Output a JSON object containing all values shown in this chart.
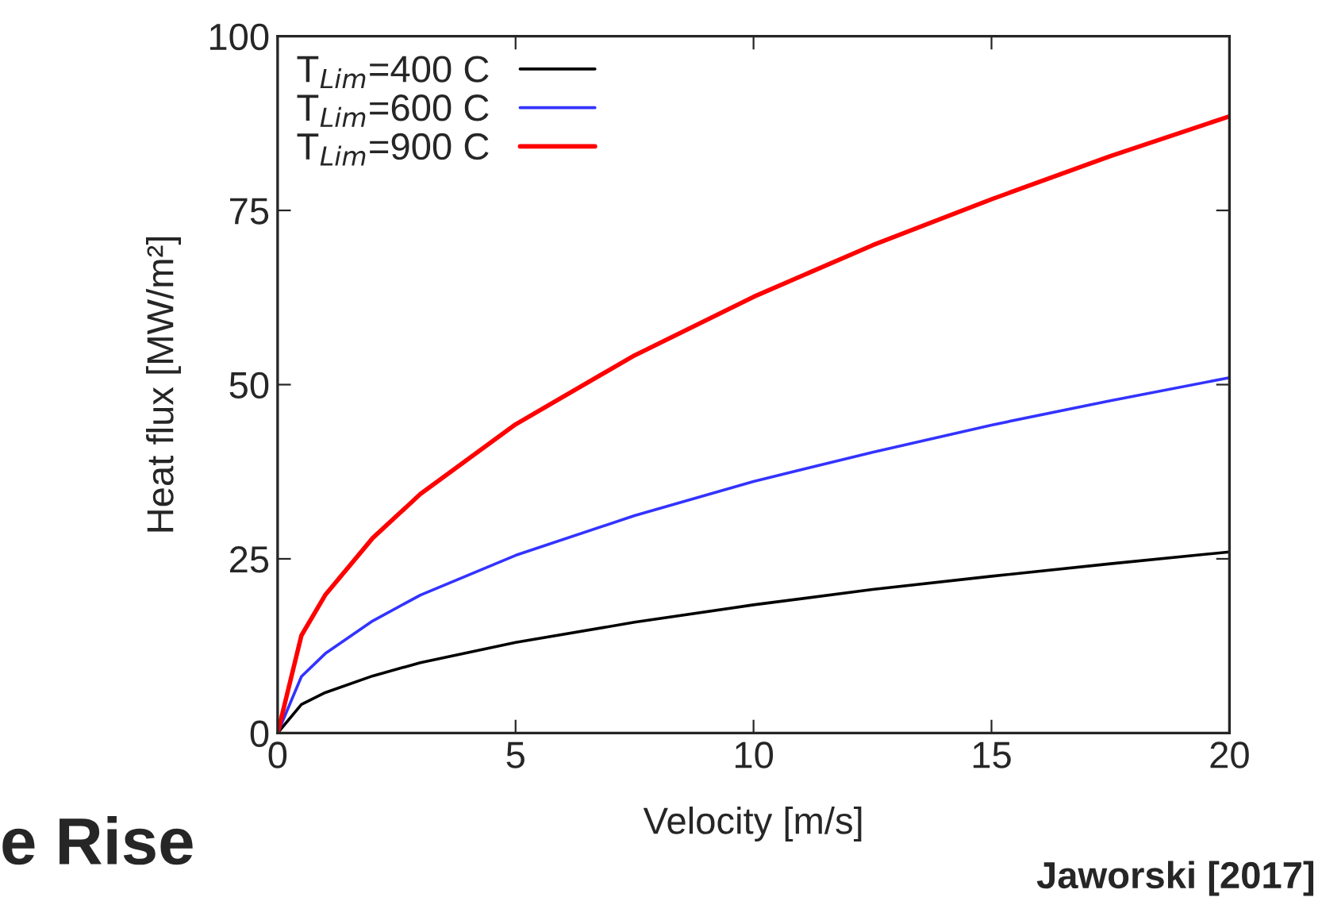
{
  "chart_data": {
    "type": "line",
    "xlabel": "Velocity [m/s]",
    "ylabel": "Heat flux [MW/m²]",
    "x": [
      0,
      0.5,
      1,
      2,
      3,
      5,
      7.5,
      10,
      12.5,
      15,
      17.5,
      20
    ],
    "series": [
      {
        "name": "T$_{Lim}$=400 C",
        "color": "#000000",
        "values": [
          0,
          4.1,
          5.8,
          8.2,
          10.1,
          13,
          15.9,
          18.4,
          20.6,
          22.5,
          24.3,
          26
        ]
      },
      {
        "name": "T$_{Lim}$=600 C",
        "color": "#3333ff",
        "values": [
          0,
          8.1,
          11.4,
          16.1,
          19.8,
          25.5,
          31.2,
          36.1,
          40.3,
          44.2,
          47.7,
          51
        ]
      },
      {
        "name": "T$_{Lim}$=900 C",
        "color": "#ff0000",
        "values": [
          0,
          14,
          19.8,
          28,
          34.3,
          44.3,
          54.2,
          62.6,
          70,
          76.6,
          82.8,
          88.5
        ]
      }
    ],
    "xlim": [
      0,
      20
    ],
    "xticks": [
      0,
      5,
      10,
      15,
      20
    ],
    "ylim": [
      0,
      100
    ],
    "yticks": [
      0,
      25,
      50,
      75,
      100
    ],
    "grid": false,
    "legend": "top left",
    "marker": "none",
    "line_style": "solid",
    "annotations": [
      "e Rise",
      "Jaworski [2017]"
    ]
  }
}
